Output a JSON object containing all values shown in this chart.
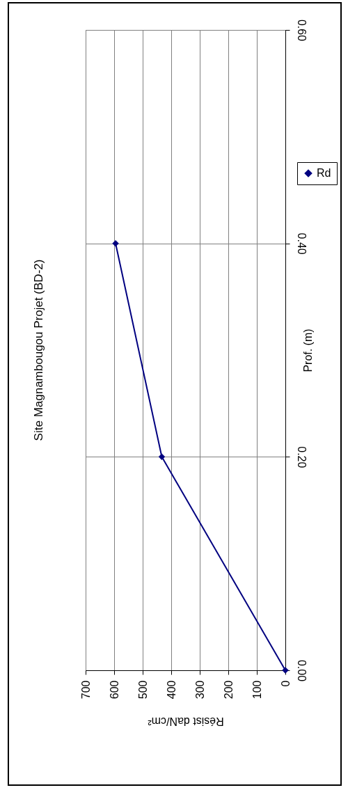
{
  "chart_data": {
    "type": "line",
    "title": "Site Magnambougou Projet (BD-2)",
    "xlabel": "Résist  daN/cm²",
    "ylabel": "Prof. (m)",
    "x": [
      0,
      433,
      595
    ],
    "series": [
      {
        "name": "Rd",
        "color": "#000080",
        "values": [
          0,
          0.2,
          0.4
        ]
      }
    ],
    "xlim": [
      700,
      0
    ],
    "xticks": [
      0,
      100,
      200,
      300,
      400,
      500,
      600,
      700
    ],
    "ylim": [
      0,
      0.6
    ],
    "yticks": [
      {
        "value": 0,
        "label": "0.00"
      },
      {
        "value": 0.2,
        "label": "0.20"
      },
      {
        "value": 0.4,
        "label": "0.40"
      },
      {
        "value": 0.6,
        "label": "0.60"
      }
    ],
    "grid": true,
    "legend": "right",
    "marker": "diamond",
    "line_style": "solid"
  }
}
